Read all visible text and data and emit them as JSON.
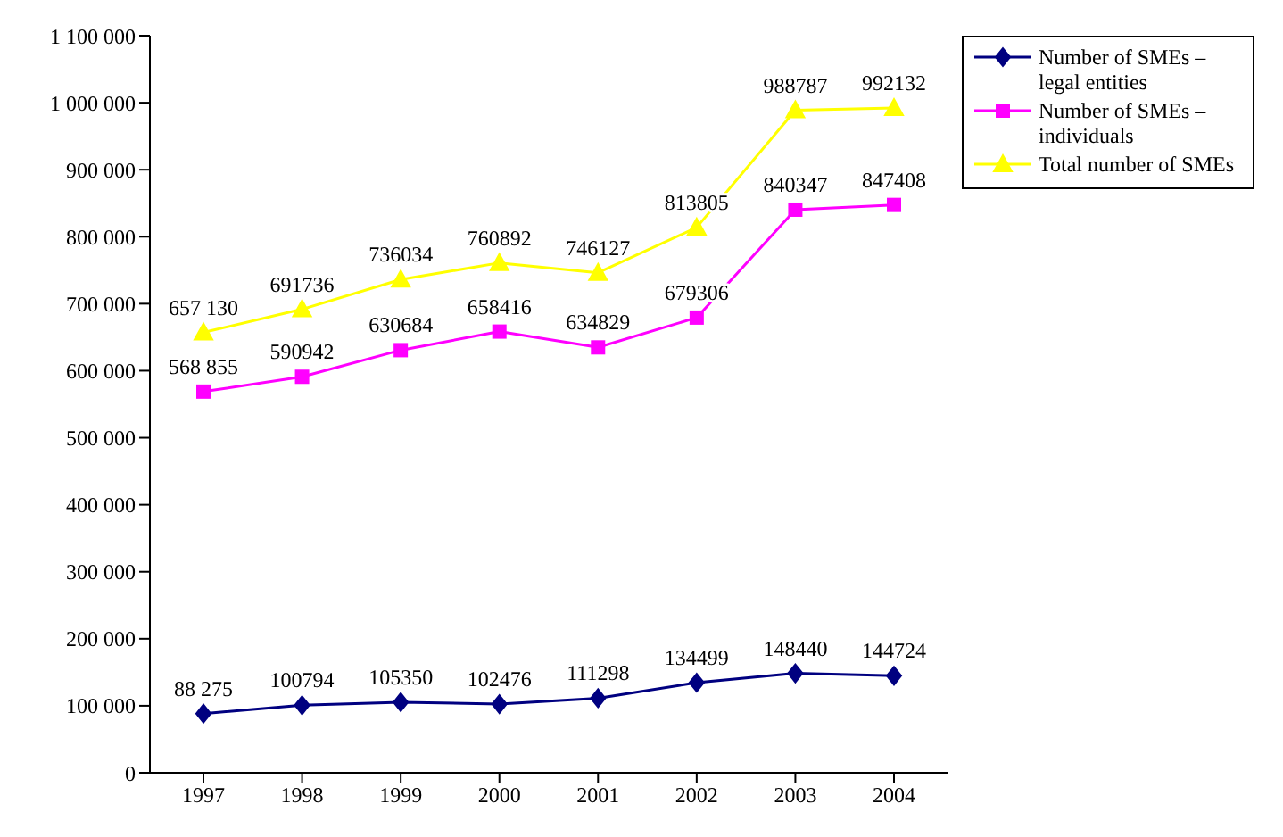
{
  "chart_data": {
    "type": "line",
    "categories": [
      "1997",
      "1998",
      "1999",
      "2000",
      "2001",
      "2002",
      "2003",
      "2004"
    ],
    "series": [
      {
        "name": "Number of SMEs – legal entities",
        "color": "#000080",
        "marker": "diamond",
        "values": [
          88275,
          100794,
          105350,
          102476,
          111298,
          134499,
          148440,
          144724
        ],
        "value_labels": [
          "88 275",
          "100794",
          "105350",
          "102476",
          "111298",
          "134499",
          "148440",
          "144724"
        ]
      },
      {
        "name": "Number of SMEs – individuals",
        "color": "#ff00ff",
        "marker": "square",
        "values": [
          568855,
          590942,
          630684,
          658416,
          634829,
          679306,
          840347,
          847408
        ],
        "value_labels": [
          "568 855",
          "590942",
          "630684",
          "658416",
          "634829",
          "679306",
          "840347",
          "847408"
        ]
      },
      {
        "name": "Total number of SMEs",
        "color": "#ffff00",
        "marker": "triangle",
        "values": [
          657130,
          691736,
          736034,
          760892,
          746127,
          813805,
          988787,
          992132
        ],
        "value_labels": [
          "657 130",
          "691736",
          "736034",
          "760892",
          "746127",
          "813805",
          "988787",
          "992132"
        ]
      }
    ],
    "ylim": [
      0,
      1100000
    ],
    "yticks": [
      0,
      {
        "value": 100000,
        "label": "100 000"
      },
      {
        "value": 200000,
        "label": "200 000"
      },
      {
        "value": 300000,
        "label": "300 000"
      },
      {
        "value": 400000,
        "label": "400 000"
      },
      {
        "value": 500000,
        "label": "500 000"
      },
      {
        "value": 600000,
        "label": "600 000"
      },
      {
        "value": 700000,
        "label": "700 000"
      },
      {
        "value": 800000,
        "label": "800 000"
      },
      {
        "value": 900000,
        "label": "900 000"
      },
      {
        "value": 1000000,
        "label": "1 000 000"
      },
      {
        "value": 1100000,
        "label": "1 100 000"
      }
    ],
    "grid": false,
    "legend": "right"
  }
}
